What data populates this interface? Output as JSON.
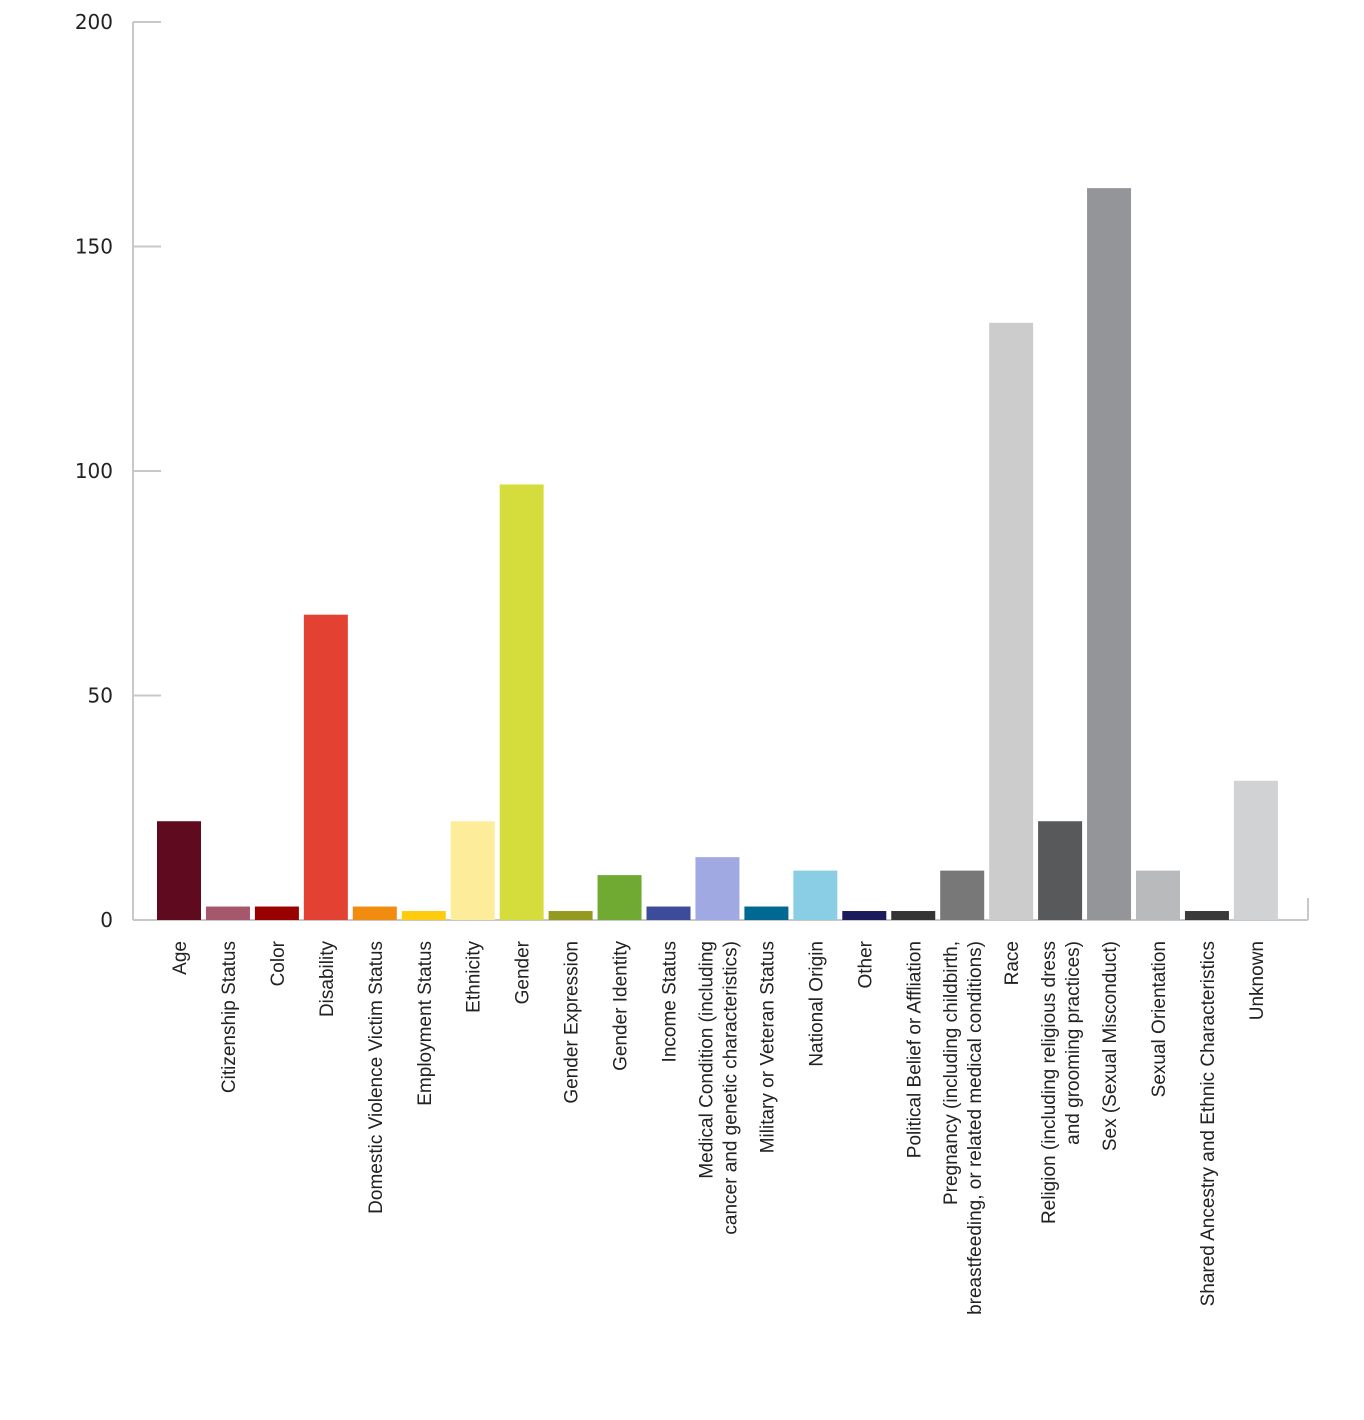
{
  "chart_data": {
    "type": "bar",
    "ylim": [
      0,
      200
    ],
    "yticks": [
      0,
      50,
      100,
      150,
      200
    ],
    "grid": false,
    "categories": [
      {
        "label": [
          "Age"
        ],
        "value": 22,
        "color": "#5f0a1f"
      },
      {
        "label": [
          "Citizenship Status"
        ],
        "value": 3,
        "color": "#a5576b"
      },
      {
        "label": [
          "Color"
        ],
        "value": 3,
        "color": "#990000"
      },
      {
        "label": [
          "Disability"
        ],
        "value": 68,
        "color": "#e34131"
      },
      {
        "label": [
          "Domestic Violence Victim Status"
        ],
        "value": 3,
        "color": "#f28c0f"
      },
      {
        "label": [
          "Employment Status"
        ],
        "value": 2,
        "color": "#ffcc0d"
      },
      {
        "label": [
          "Ethnicity"
        ],
        "value": 22,
        "color": "#fded9b"
      },
      {
        "label": [
          "Gender"
        ],
        "value": 97,
        "color": "#d4dd3c"
      },
      {
        "label": [
          "Gender Expression"
        ],
        "value": 2,
        "color": "#949a1f"
      },
      {
        "label": [
          "Gender Identity"
        ],
        "value": 10,
        "color": "#71aa32"
      },
      {
        "label": [
          "Income Status"
        ],
        "value": 3,
        "color": "#3c4b9a"
      },
      {
        "label": [
          "Medical Condition (including",
          "cancer and genetic characteristics)"
        ],
        "value": 14,
        "color": "#a1a9e3"
      },
      {
        "label": [
          "Military or Veteran Status"
        ],
        "value": 3,
        "color": "#006993"
      },
      {
        "label": [
          "National Origin"
        ],
        "value": 11,
        "color": "#8acee6"
      },
      {
        "label": [
          "Other"
        ],
        "value": 2,
        "color": "#1a1a5c"
      },
      {
        "label": [
          "Political Belief or Affliation"
        ],
        "value": 2,
        "color": "#353535"
      },
      {
        "label": [
          "Pregnancy (including childbirth,",
          "breastfeeding, or related medical conditions)"
        ],
        "value": 11,
        "color": "#787878"
      },
      {
        "label": [
          "Race"
        ],
        "value": 133,
        "color": "#cccccc"
      },
      {
        "label": [
          "Religion (including religious dress",
          "and grooming practices)"
        ],
        "value": 22,
        "color": "#58595b"
      },
      {
        "label": [
          "Sex (Sexual Misconduct)"
        ],
        "value": 163,
        "color": "#939598"
      },
      {
        "label": [
          "Sexual Orientation"
        ],
        "value": 11,
        "color": "#b9babb"
      },
      {
        "label": [
          "Shared Ancestry and Ethnic Characteristics"
        ],
        "value": 2,
        "color": "#3a3a3a"
      },
      {
        "label": [
          "Unknown"
        ],
        "value": 31,
        "color": "#d1d2d4"
      }
    ]
  }
}
